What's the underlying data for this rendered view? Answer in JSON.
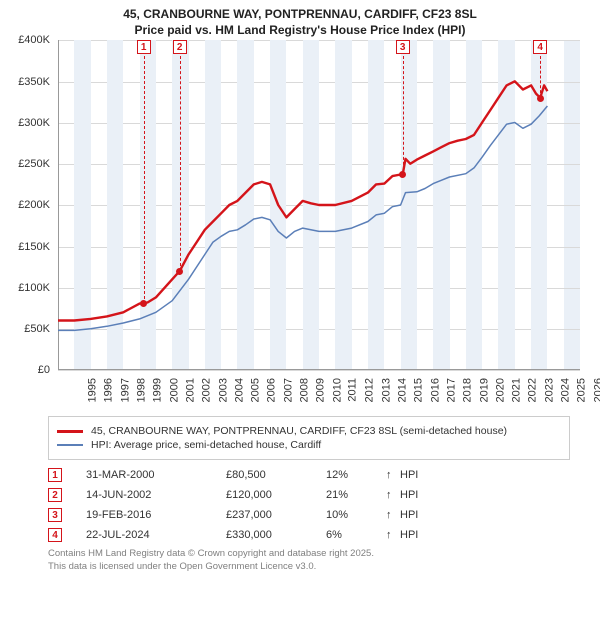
{
  "title": {
    "line1": "45, CRANBOURNE WAY, PONTPRENNAU, CARDIFF, CF23 8SL",
    "line2": "Price paid vs. HM Land Registry's House Price Index (HPI)"
  },
  "chart": {
    "type": "line",
    "background_color": "#ffffff",
    "grid_color": "#d9d9d9",
    "band_color": "#eaf0f7",
    "y": {
      "min": 0,
      "max": 400000,
      "tick_step": 50000,
      "labels": [
        "£0",
        "£50K",
        "£100K",
        "£150K",
        "£200K",
        "£250K",
        "£300K",
        "£350K",
        "£400K"
      ]
    },
    "x": {
      "min": 1995,
      "max": 2027,
      "ticks": [
        1995,
        1996,
        1997,
        1998,
        1999,
        2000,
        2001,
        2002,
        2003,
        2004,
        2005,
        2006,
        2007,
        2008,
        2009,
        2010,
        2011,
        2012,
        2013,
        2014,
        2015,
        2016,
        2017,
        2018,
        2019,
        2020,
        2021,
        2022,
        2023,
        2024,
        2025,
        2026,
        2027
      ]
    },
    "series": [
      {
        "name": "45, CRANBOURNE WAY, PONTPRENNAU, CARDIFF, CF23 8SL (semi-detached house)",
        "color": "#d4141a",
        "width": 2.4,
        "data": [
          [
            1995,
            60000
          ],
          [
            1996,
            60000
          ],
          [
            1997,
            62000
          ],
          [
            1998,
            65000
          ],
          [
            1999,
            70000
          ],
          [
            2000,
            80500
          ],
          [
            2000.5,
            82000
          ],
          [
            2001,
            88000
          ],
          [
            2002,
            110000
          ],
          [
            2002.46,
            120000
          ],
          [
            2003,
            140000
          ],
          [
            2003.5,
            155000
          ],
          [
            2004,
            170000
          ],
          [
            2004.5,
            180000
          ],
          [
            2005,
            190000
          ],
          [
            2005.5,
            200000
          ],
          [
            2006,
            205000
          ],
          [
            2006.5,
            215000
          ],
          [
            2007,
            225000
          ],
          [
            2007.5,
            228000
          ],
          [
            2008,
            225000
          ],
          [
            2008.5,
            200000
          ],
          [
            2009,
            185000
          ],
          [
            2009.5,
            195000
          ],
          [
            2010,
            205000
          ],
          [
            2010.5,
            202000
          ],
          [
            2011,
            200000
          ],
          [
            2012,
            200000
          ],
          [
            2013,
            205000
          ],
          [
            2014,
            215000
          ],
          [
            2014.5,
            225000
          ],
          [
            2015,
            226000
          ],
          [
            2015.5,
            235000
          ],
          [
            2016,
            237000
          ],
          [
            2016.13,
            237000
          ],
          [
            2016.3,
            256000
          ],
          [
            2016.6,
            250000
          ],
          [
            2017,
            255000
          ],
          [
            2017.5,
            260000
          ],
          [
            2018,
            265000
          ],
          [
            2018.5,
            270000
          ],
          [
            2019,
            275000
          ],
          [
            2019.5,
            278000
          ],
          [
            2020,
            280000
          ],
          [
            2020.5,
            285000
          ],
          [
            2021,
            300000
          ],
          [
            2021.5,
            315000
          ],
          [
            2022,
            330000
          ],
          [
            2022.5,
            345000
          ],
          [
            2023,
            350000
          ],
          [
            2023.5,
            340000
          ],
          [
            2024,
            345000
          ],
          [
            2024.3,
            335000
          ],
          [
            2024.56,
            330000
          ],
          [
            2024.8,
            345000
          ],
          [
            2025,
            338000
          ]
        ]
      },
      {
        "name": "HPI: Average price, semi-detached house, Cardiff",
        "color": "#5b7fb8",
        "width": 1.5,
        "data": [
          [
            1995,
            48000
          ],
          [
            1996,
            48000
          ],
          [
            1997,
            50000
          ],
          [
            1998,
            53000
          ],
          [
            1999,
            57000
          ],
          [
            2000,
            62000
          ],
          [
            2001,
            70000
          ],
          [
            2002,
            84000
          ],
          [
            2003,
            110000
          ],
          [
            2004,
            140000
          ],
          [
            2004.5,
            155000
          ],
          [
            2005,
            162000
          ],
          [
            2005.5,
            168000
          ],
          [
            2006,
            170000
          ],
          [
            2006.5,
            176000
          ],
          [
            2007,
            183000
          ],
          [
            2007.5,
            185000
          ],
          [
            2008,
            182000
          ],
          [
            2008.5,
            168000
          ],
          [
            2009,
            160000
          ],
          [
            2009.5,
            168000
          ],
          [
            2010,
            172000
          ],
          [
            2011,
            168000
          ],
          [
            2012,
            168000
          ],
          [
            2013,
            172000
          ],
          [
            2014,
            180000
          ],
          [
            2014.5,
            188000
          ],
          [
            2015,
            190000
          ],
          [
            2015.5,
            198000
          ],
          [
            2016,
            200000
          ],
          [
            2016.3,
            215000
          ],
          [
            2017,
            216000
          ],
          [
            2017.5,
            220000
          ],
          [
            2018,
            226000
          ],
          [
            2018.5,
            230000
          ],
          [
            2019,
            234000
          ],
          [
            2020,
            238000
          ],
          [
            2020.5,
            245000
          ],
          [
            2021,
            258000
          ],
          [
            2021.5,
            272000
          ],
          [
            2022,
            285000
          ],
          [
            2022.5,
            298000
          ],
          [
            2023,
            300000
          ],
          [
            2023.5,
            293000
          ],
          [
            2024,
            298000
          ],
          [
            2024.5,
            308000
          ],
          [
            2025,
            320000
          ]
        ]
      }
    ],
    "sales": [
      {
        "n": "1",
        "year": 2000.25,
        "price": 80500,
        "color": "#d4141a"
      },
      {
        "n": "2",
        "year": 2002.46,
        "price": 120000,
        "color": "#d4141a"
      },
      {
        "n": "3",
        "year": 2016.13,
        "price": 237000,
        "color": "#d4141a"
      },
      {
        "n": "4",
        "year": 2024.56,
        "price": 330000,
        "color": "#d4141a"
      }
    ]
  },
  "legend": {
    "items": [
      {
        "color": "#d4141a",
        "width": 3,
        "label": "45, CRANBOURNE WAY, PONTPRENNAU, CARDIFF, CF23 8SL (semi-detached house)"
      },
      {
        "color": "#5b7fb8",
        "width": 2,
        "label": "HPI: Average price, semi-detached house, Cardiff"
      }
    ]
  },
  "rows": [
    {
      "n": "1",
      "color": "#d4141a",
      "date": "31-MAR-2000",
      "price": "£80,500",
      "pct": "12%",
      "arrow": "↑",
      "suffix": "HPI"
    },
    {
      "n": "2",
      "color": "#d4141a",
      "date": "14-JUN-2002",
      "price": "£120,000",
      "pct": "21%",
      "arrow": "↑",
      "suffix": "HPI"
    },
    {
      "n": "3",
      "color": "#d4141a",
      "date": "19-FEB-2016",
      "price": "£237,000",
      "pct": "10%",
      "arrow": "↑",
      "suffix": "HPI"
    },
    {
      "n": "4",
      "color": "#d4141a",
      "date": "22-JUL-2024",
      "price": "£330,000",
      "pct": "6%",
      "arrow": "↑",
      "suffix": "HPI"
    }
  ],
  "footer": {
    "line1": "Contains HM Land Registry data © Crown copyright and database right 2025.",
    "line2": "This data is licensed under the Open Government Licence v3.0."
  }
}
